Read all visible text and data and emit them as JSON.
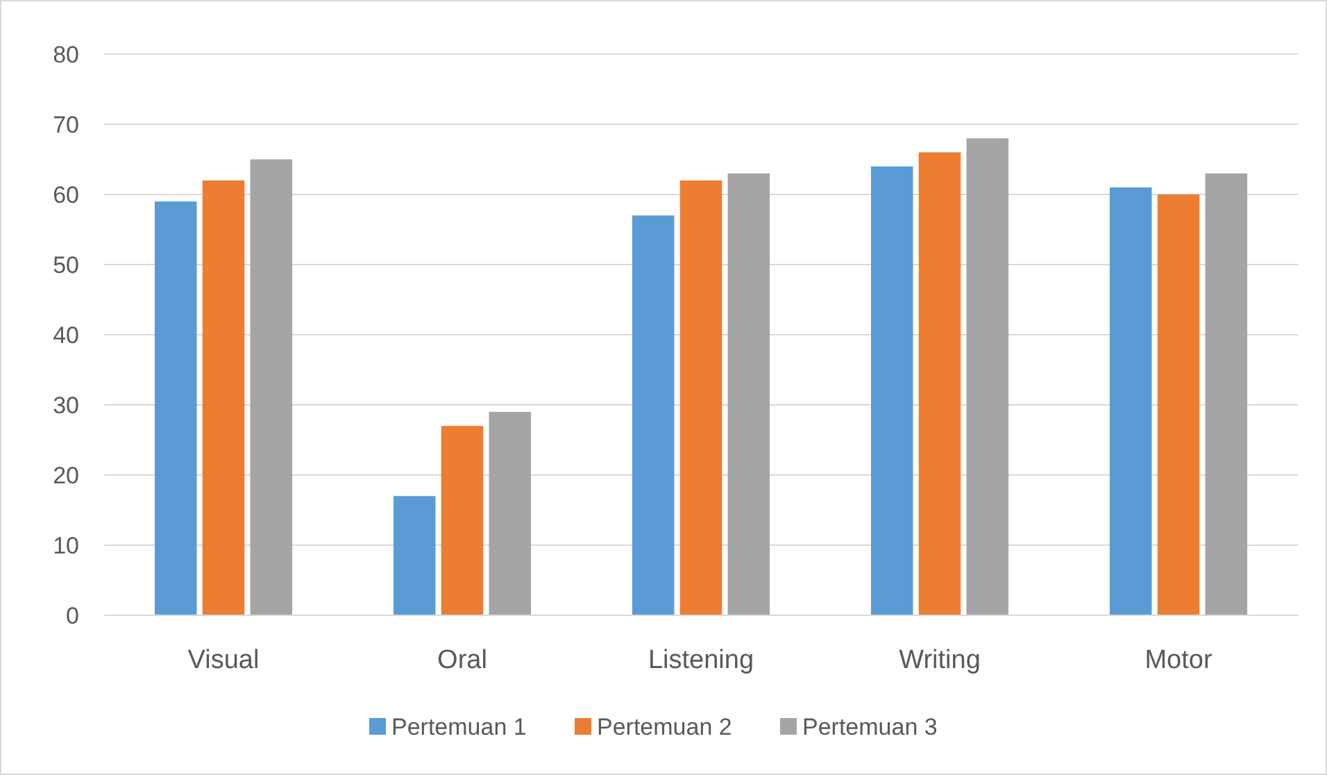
{
  "chart_data": {
    "type": "bar",
    "categories": [
      "Visual",
      "Oral",
      "Listening",
      "Writing",
      "Motor"
    ],
    "series": [
      {
        "name": "Pertemuan 1",
        "color": "#5b9bd5",
        "values": [
          59,
          17,
          57,
          64,
          61
        ]
      },
      {
        "name": "Pertemuan 2",
        "color": "#ed7d31",
        "values": [
          62,
          27,
          62,
          66,
          60
        ]
      },
      {
        "name": "Pertemuan 3",
        "color": "#a5a5a5",
        "values": [
          65,
          29,
          63,
          68,
          63
        ]
      }
    ],
    "ylim": [
      0,
      80
    ],
    "yticks": [
      0,
      10,
      20,
      30,
      40,
      50,
      60,
      70,
      80
    ],
    "grid": "y",
    "legend": "bottom"
  }
}
